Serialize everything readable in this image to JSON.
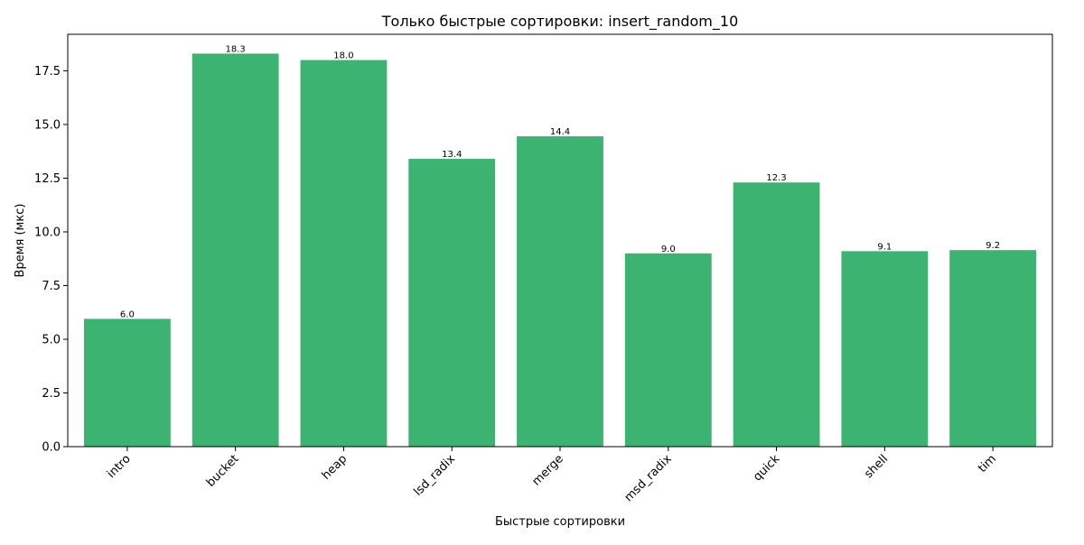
{
  "chart_data": {
    "type": "bar",
    "title": "Только быстрые сортировки: insert_random_10",
    "xlabel": "Быстрые сортировки",
    "ylabel": "Время (мкс)",
    "categories": [
      "intro",
      "bucket",
      "heap",
      "lsd_radix",
      "merge",
      "msd_radix",
      "quick",
      "shell",
      "tim"
    ],
    "values": [
      5.95,
      18.3,
      18.0,
      13.4,
      14.45,
      9.0,
      12.3,
      9.1,
      9.15
    ],
    "data_labels": [
      "6.0",
      "18.3",
      "18.0",
      "13.4",
      "14.4",
      "9.0",
      "12.3",
      "9.1",
      "9.2"
    ],
    "ylim": [
      0,
      19.2
    ],
    "yticks": [
      0,
      2.5,
      5,
      7.5,
      10,
      12.5,
      15,
      17.5
    ],
    "ytick_labels": [
      "0.0",
      "2.5",
      "5.0",
      "7.5",
      "10.0",
      "12.5",
      "15.0",
      "17.5"
    ],
    "xtick_rotation": -45,
    "bar_color": "#3cb371",
    "grid": false,
    "legend": "none"
  }
}
